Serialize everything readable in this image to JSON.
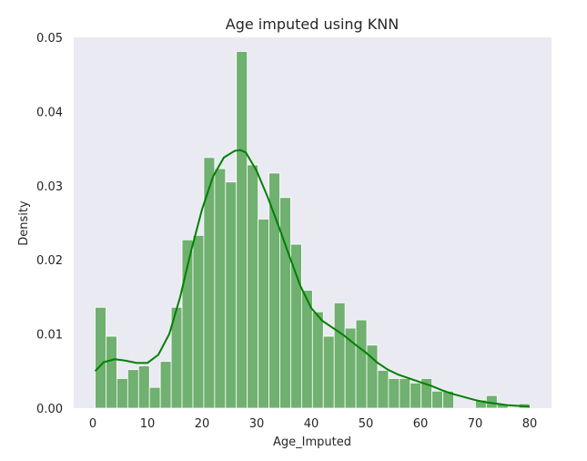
{
  "chart_data": {
    "type": "bar",
    "title": "Age imputed using KNN",
    "xlabel": "Age_Imputed",
    "ylabel": "Density",
    "xlim": [
      -3.5,
      84
    ],
    "ylim": [
      0,
      0.05
    ],
    "x_ticks": [
      0,
      10,
      20,
      30,
      40,
      50,
      60,
      70,
      80
    ],
    "x_tick_labels": [
      "0",
      "10",
      "20",
      "30",
      "40",
      "50",
      "60",
      "70",
      "80"
    ],
    "y_ticks": [
      0,
      0.01,
      0.02,
      0.03,
      0.04,
      0.05
    ],
    "y_tick_labels": [
      "0.00",
      "0.01",
      "0.02",
      "0.03",
      "0.04",
      "0.05"
    ],
    "grid": false,
    "bin_edges": [
      0.42,
      2.41,
      4.4,
      6.39,
      8.38,
      10.37,
      12.36,
      14.35,
      16.34,
      18.33,
      20.32,
      22.31,
      24.3,
      26.29,
      28.28,
      30.27,
      32.26,
      34.25,
      36.24,
      38.23,
      40.22,
      42.21,
      44.2,
      46.19,
      48.18,
      50.17,
      52.16,
      54.15,
      56.14,
      58.13,
      60.12,
      62.11,
      64.1,
      66.09,
      68.08,
      70.07,
      72.06,
      74.05,
      76.04,
      78.03,
      80.02
    ],
    "values": [
      0.0136,
      0.0097,
      0.004,
      0.0052,
      0.0057,
      0.0028,
      0.0063,
      0.0136,
      0.0227,
      0.0233,
      0.0338,
      0.0323,
      0.0305,
      0.0481,
      0.0328,
      0.0255,
      0.0317,
      0.0284,
      0.0221,
      0.0159,
      0.013,
      0.0097,
      0.0142,
      0.0108,
      0.0119,
      0.0085,
      0.0051,
      0.004,
      0.004,
      0.0034,
      0.004,
      0.0023,
      0.0023,
      0,
      0,
      0.0011,
      0.0017,
      0.0006,
      0,
      0.0006
    ],
    "kde": {
      "x": [
        0.42,
        2,
        4,
        6,
        8,
        10,
        12,
        14,
        16,
        18,
        20,
        22,
        24,
        26,
        27,
        28,
        30,
        32,
        34,
        36,
        38,
        40,
        42,
        44,
        46,
        48,
        50,
        52,
        54,
        56,
        58,
        60,
        62,
        64,
        66,
        68,
        70,
        72,
        74,
        76,
        78,
        80
      ],
      "y": [
        0.005,
        0.0062,
        0.0066,
        0.0064,
        0.0061,
        0.0061,
        0.0072,
        0.01,
        0.015,
        0.0212,
        0.0268,
        0.0312,
        0.0338,
        0.0347,
        0.0348,
        0.0345,
        0.032,
        0.0285,
        0.0246,
        0.0205,
        0.0165,
        0.0135,
        0.0118,
        0.0108,
        0.0098,
        0.0086,
        0.0075,
        0.0062,
        0.0052,
        0.0045,
        0.004,
        0.0035,
        0.003,
        0.0024,
        0.0019,
        0.0015,
        0.0011,
        0.0008,
        0.0006,
        0.0004,
        0.0003,
        0.0002
      ]
    },
    "colors": {
      "bar_fill": "#70b070",
      "bar_edge": "#ffffff",
      "kde_line": "#008000",
      "plot_background": "#eaeaf2",
      "text": "#262626"
    }
  }
}
